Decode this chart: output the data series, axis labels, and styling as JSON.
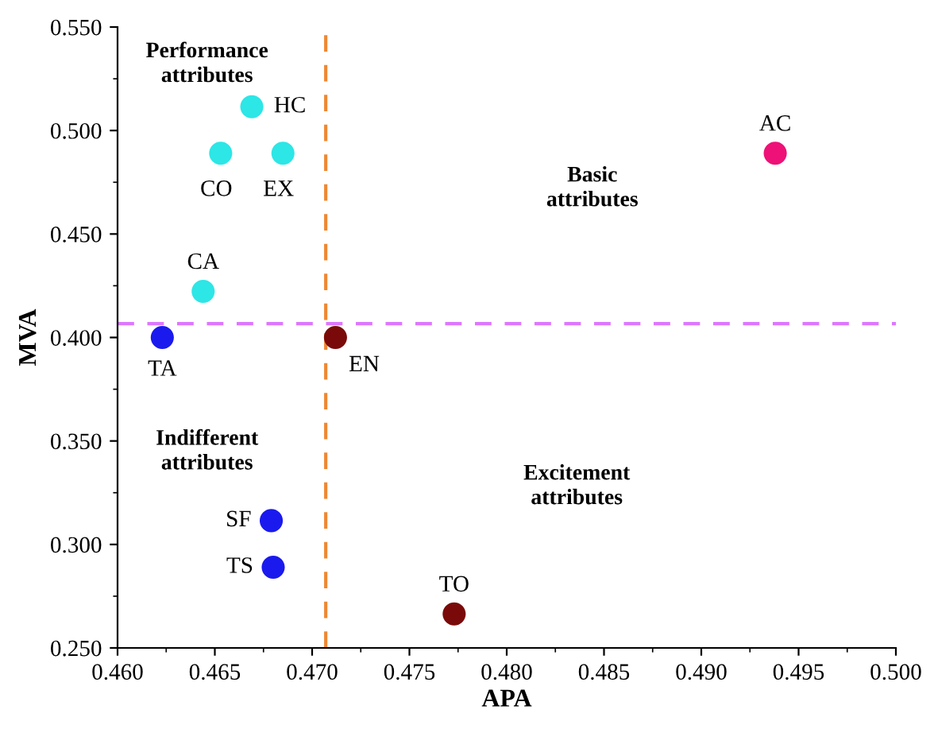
{
  "chart_data": {
    "type": "scatter",
    "xlabel": "APA",
    "ylabel": "MVA",
    "x": [
      0.4669,
      0.4653,
      0.4685,
      0.4938,
      0.4644,
      0.4623,
      0.4712,
      0.4679,
      0.468,
      0.4773
    ],
    "series": [
      {
        "values": [
          0.5115,
          0.489,
          0.489,
          0.489,
          0.4223,
          0.4,
          0.4,
          0.3115,
          0.289,
          0.2664
        ],
        "colors": [
          "#2de6e6",
          "#2de6e6",
          "#2de6e6",
          "#ee1177",
          "#2de6e6",
          "#1a1aee",
          "#7a0a0a",
          "#1a1aee",
          "#1a1aee",
          "#7a0a0a"
        ]
      }
    ],
    "marker": "circle",
    "xlim": [
      0.46,
      0.5
    ],
    "xticks": [
      {
        "value": 0.46,
        "label": "0.460"
      },
      {
        "value": 0.465,
        "label": "0.465"
      },
      {
        "value": 0.47,
        "label": "0.470"
      },
      {
        "value": 0.475,
        "label": "0.475"
      },
      {
        "value": 0.48,
        "label": "0.480"
      },
      {
        "value": 0.485,
        "label": "0.485"
      },
      {
        "value": 0.49,
        "label": "0.490"
      },
      {
        "value": 0.495,
        "label": "0.495"
      },
      {
        "value": 0.5,
        "label": "0.500"
      }
    ],
    "ylim": [
      0.25,
      0.55
    ],
    "yticks": [
      {
        "value": 0.25,
        "label": "0.250"
      },
      {
        "value": 0.3,
        "label": "0.300"
      },
      {
        "value": 0.35,
        "label": "0.350"
      },
      {
        "value": 0.4,
        "label": "0.400"
      },
      {
        "value": 0.45,
        "label": "0.450"
      },
      {
        "value": 0.5,
        "label": "0.500"
      },
      {
        "value": 0.55,
        "label": "0.550"
      }
    ],
    "ref_lines": [
      {
        "axis": "x",
        "value": 0.4707,
        "color": "#ee8833",
        "line_style": "dashed"
      },
      {
        "axis": "y",
        "value": 0.4067,
        "color": "#dd77ff",
        "line_style": "dashed"
      }
    ],
    "annotations": [
      {
        "text": "HC",
        "x": 0.4669,
        "y": 0.5115
      },
      {
        "text": "CO",
        "x": 0.4653,
        "y": 0.489
      },
      {
        "text": "EX",
        "x": 0.4685,
        "y": 0.489
      },
      {
        "text": "AC",
        "x": 0.4938,
        "y": 0.489
      },
      {
        "text": "CA",
        "x": 0.4644,
        "y": 0.4223
      },
      {
        "text": "TA",
        "x": 0.4623,
        "y": 0.4
      },
      {
        "text": "EN",
        "x": 0.4712,
        "y": 0.4
      },
      {
        "text": "SF",
        "x": 0.4679,
        "y": 0.3115
      },
      {
        "text": "TS",
        "x": 0.468,
        "y": 0.289
      },
      {
        "text": "TO",
        "x": 0.4773,
        "y": 0.2664
      },
      "Performance\nattributes",
      "Basic\nattributes",
      "Indifferent\nattributes",
      "Excitement\nattributes"
    ],
    "grid": false
  }
}
